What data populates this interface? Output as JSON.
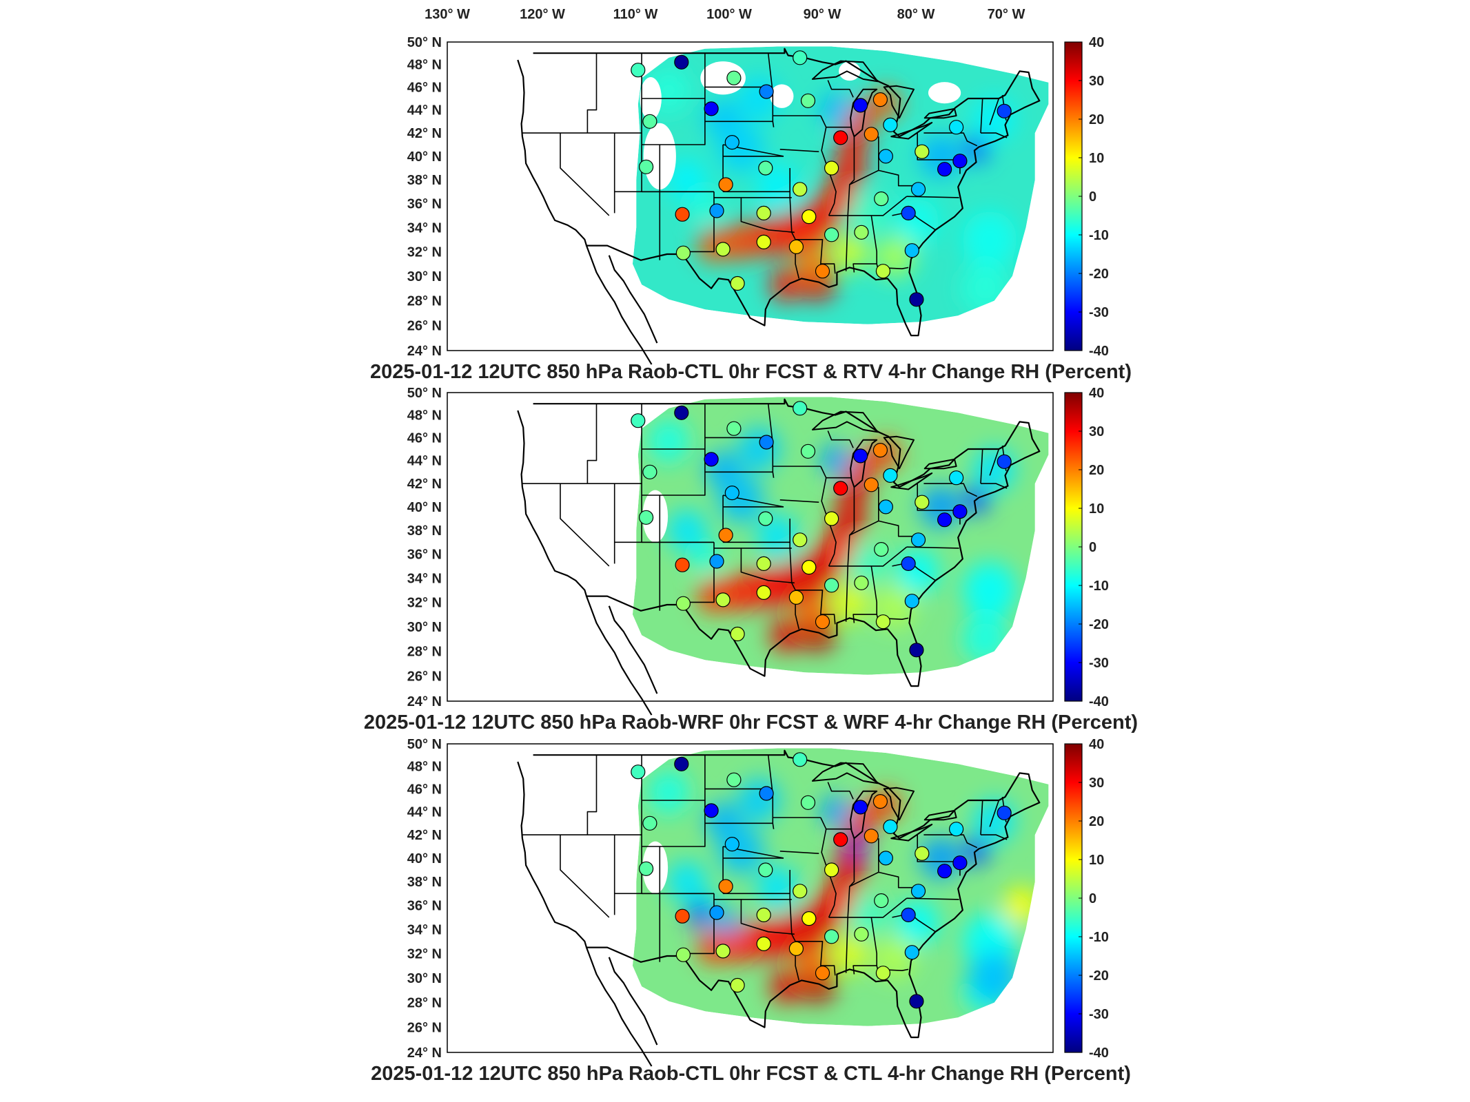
{
  "figure": {
    "top_lon_labels": [
      "130° W",
      "120° W",
      "110° W",
      "100° W",
      "90° W",
      "80° W",
      "70° W"
    ],
    "lat_labels": [
      "50° N",
      "48° N",
      "46° N",
      "44° N",
      "42° N",
      "40° N",
      "38° N",
      "36° N",
      "34° N",
      "32° N",
      "30° N",
      "28° N",
      "26° N",
      "24° N"
    ],
    "colorbar": {
      "ticks": [
        "40",
        "30",
        "20",
        "10",
        "0",
        "-10",
        "-20",
        "-30",
        "-40"
      ],
      "min": -40,
      "max": 40,
      "colormap": [
        "#00007f",
        "#0000ff",
        "#007fff",
        "#00ffff",
        "#7fff7f",
        "#ffff00",
        "#ff7f00",
        "#ff0000",
        "#7f0000"
      ]
    },
    "panels": [
      {
        "title": "2025-01-12 12UTC 850 hPa Raob-CTL 0hr FCST & RTV 4-hr Change RH (Percent)"
      },
      {
        "title": "2025-01-12 12UTC 850 hPa Raob-WRF 0hr FCST & WRF 4-hr Change RH (Percent)"
      },
      {
        "title": "2025-01-12 12UTC 850 hPa Raob-CTL 0hr FCST & CTL 4-hr Change RH (Percent)"
      }
    ]
  },
  "stations": [
    {
      "lon": -111.4,
      "lat": 47.5,
      "v": [
        -5,
        -5,
        -5
      ]
    },
    {
      "lon": -106.6,
      "lat": 48.2,
      "v": [
        -38,
        -38,
        -38
      ]
    },
    {
      "lon": -100.8,
      "lat": 46.8,
      "v": [
        -2,
        -2,
        -2
      ]
    },
    {
      "lon": -97.2,
      "lat": 45.6,
      "v": [
        -20,
        -20,
        -20
      ]
    },
    {
      "lon": -93.5,
      "lat": 48.6,
      "v": [
        -5,
        -5,
        -5
      ]
    },
    {
      "lon": -103.3,
      "lat": 44.1,
      "v": [
        -30,
        -30,
        -30
      ]
    },
    {
      "lon": -110.1,
      "lat": 43.0,
      "v": [
        -3,
        -3,
        -3
      ]
    },
    {
      "lon": -92.6,
      "lat": 44.8,
      "v": [
        -2,
        -2,
        -2
      ]
    },
    {
      "lon": -86.8,
      "lat": 44.4,
      "v": [
        -30,
        -30,
        -30
      ]
    },
    {
      "lon": -84.6,
      "lat": 44.9,
      "v": [
        20,
        20,
        20
      ]
    },
    {
      "lon": -83.5,
      "lat": 42.7,
      "v": [
        -12,
        -12,
        -12
      ]
    },
    {
      "lon": -76.2,
      "lat": 42.5,
      "v": [
        -12,
        -12,
        -12
      ]
    },
    {
      "lon": -70.9,
      "lat": 43.9,
      "v": [
        -25,
        -25,
        -25
      ]
    },
    {
      "lon": -101.0,
      "lat": 41.2,
      "v": [
        -15,
        -15,
        -15
      ]
    },
    {
      "lon": -97.3,
      "lat": 39.0,
      "v": [
        -3,
        -3,
        -3
      ]
    },
    {
      "lon": -101.7,
      "lat": 37.6,
      "v": [
        20,
        20,
        20
      ]
    },
    {
      "lon": -110.5,
      "lat": 39.1,
      "v": [
        -3,
        -3,
        -3
      ]
    },
    {
      "lon": -106.5,
      "lat": 35.1,
      "v": [
        24,
        24,
        24
      ]
    },
    {
      "lon": -102.7,
      "lat": 35.4,
      "v": [
        -18,
        -18,
        -18
      ]
    },
    {
      "lon": -97.5,
      "lat": 35.2,
      "v": [
        5,
        5,
        5
      ]
    },
    {
      "lon": -93.5,
      "lat": 37.2,
      "v": [
        5,
        5,
        5
      ]
    },
    {
      "lon": -90.0,
      "lat": 39.0,
      "v": [
        8,
        8,
        8
      ]
    },
    {
      "lon": -89.0,
      "lat": 41.6,
      "v": [
        30,
        30,
        30
      ]
    },
    {
      "lon": -85.6,
      "lat": 41.9,
      "v": [
        20,
        20,
        20
      ]
    },
    {
      "lon": -84.0,
      "lat": 40.0,
      "v": [
        -15,
        -15,
        -15
      ]
    },
    {
      "lon": -80.0,
      "lat": 40.4,
      "v": [
        5,
        5,
        5
      ]
    },
    {
      "lon": -80.4,
      "lat": 37.2,
      "v": [
        -15,
        -15,
        -15
      ]
    },
    {
      "lon": -77.5,
      "lat": 38.9,
      "v": [
        -30,
        -30,
        -30
      ]
    },
    {
      "lon": -75.8,
      "lat": 39.6,
      "v": [
        -30,
        -30,
        -30
      ]
    },
    {
      "lon": -84.5,
      "lat": 36.4,
      "v": [
        -2,
        -2,
        -2
      ]
    },
    {
      "lon": -81.5,
      "lat": 35.2,
      "v": [
        -25,
        -25,
        -25
      ]
    },
    {
      "lon": -86.7,
      "lat": 33.6,
      "v": [
        2,
        2,
        2
      ]
    },
    {
      "lon": -90.0,
      "lat": 33.4,
      "v": [
        -3,
        -3,
        -3
      ]
    },
    {
      "lon": -92.5,
      "lat": 34.9,
      "v": [
        10,
        10,
        10
      ]
    },
    {
      "lon": -93.9,
      "lat": 32.4,
      "v": [
        15,
        15,
        15
      ]
    },
    {
      "lon": -97.5,
      "lat": 32.8,
      "v": [
        8,
        8,
        8
      ]
    },
    {
      "lon": -102.0,
      "lat": 32.2,
      "v": [
        5,
        5,
        5
      ]
    },
    {
      "lon": -106.4,
      "lat": 31.9,
      "v": [
        2,
        2,
        2
      ]
    },
    {
      "lon": -100.4,
      "lat": 29.4,
      "v": [
        5,
        5,
        5
      ]
    },
    {
      "lon": -91.0,
      "lat": 30.4,
      "v": [
        20,
        20,
        20
      ]
    },
    {
      "lon": -84.3,
      "lat": 30.4,
      "v": [
        5,
        5,
        5
      ]
    },
    {
      "lon": -81.1,
      "lat": 32.1,
      "v": [
        -15,
        -15,
        -15
      ]
    },
    {
      "lon": -80.6,
      "lat": 28.1,
      "v": [
        -38,
        -38,
        -38
      ]
    }
  ]
}
